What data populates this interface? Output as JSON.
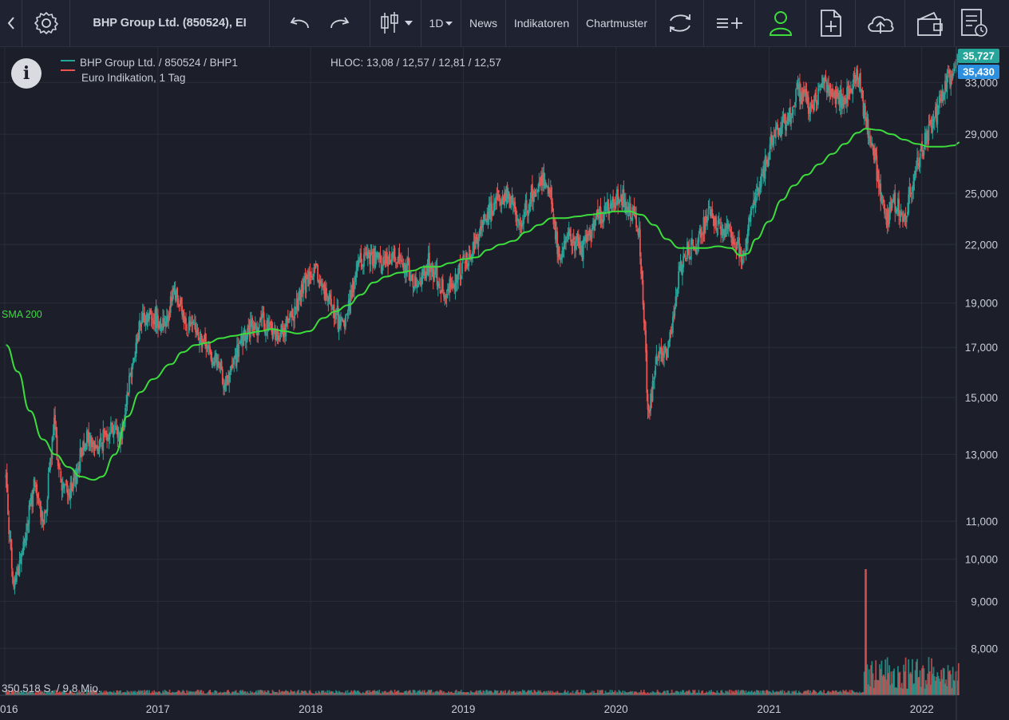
{
  "toolbar": {
    "instrument_title": "BHP Group Ltd. (850524), EI",
    "interval_label": "1D",
    "news_label": "News",
    "indicators_label": "Indikatoren",
    "patterns_label": "Chartmuster"
  },
  "legend": {
    "line1": "BHP Group Ltd.  / 850524 / BHP1",
    "line2": "Euro Indikation, 1 Tag",
    "hloc": "HLOC: 13,08 / 12,57 / 12,81 / 12,57",
    "series_up_color": "#26a69a",
    "series_down_color": "#ef5350"
  },
  "sma_label": "SMA 200",
  "sma_color": "#3ddc3d",
  "volume_label": "350.518 S.  / 9,8 Mio.",
  "price_tags": {
    "top": "35,727",
    "second": "35,430",
    "top_color": "#26a69a",
    "second_color": "#2d8fe0"
  },
  "chart_data": {
    "type": "candlestick",
    "y_axis": {
      "scale": "log",
      "ylim": [
        7200,
        36500
      ],
      "ticks": [
        8000,
        9000,
        10000,
        11000,
        13000,
        15000,
        17000,
        19000,
        22000,
        25000,
        29000,
        33000
      ],
      "tick_labels": [
        "8,000",
        "9,000",
        "10,000",
        "11,000",
        "13,000",
        "15,000",
        "17,000",
        "19,000",
        "22,000",
        "25,000",
        "29,000",
        "33,000"
      ]
    },
    "x_axis": {
      "xlim": [
        "2016-01-01",
        "2022-04-05"
      ],
      "tick_labels": [
        "016",
        "2017",
        "2018",
        "2019",
        "2020",
        "2021",
        "2022"
      ],
      "tick_dates": [
        "2016-01-01",
        "2017-01-01",
        "2018-01-01",
        "2019-01-01",
        "2020-01-01",
        "2021-01-01",
        "2022-01-01"
      ]
    },
    "price_path": [
      [
        "2016-01-04",
        12.3
      ],
      [
        "2016-01-20",
        9.3
      ],
      [
        "2016-02-15",
        10.3
      ],
      [
        "2016-03-10",
        12.0
      ],
      [
        "2016-04-05",
        11.0
      ],
      [
        "2016-04-28",
        14.0
      ],
      [
        "2016-05-15",
        12.0
      ],
      [
        "2016-06-10",
        11.8
      ],
      [
        "2016-07-10",
        13.6
      ],
      [
        "2016-08-10",
        13.2
      ],
      [
        "2016-09-10",
        14.0
      ],
      [
        "2016-10-05",
        13.6
      ],
      [
        "2016-10-25",
        15.8
      ],
      [
        "2016-11-20",
        18.0
      ],
      [
        "2016-12-15",
        18.5
      ],
      [
        "2017-01-15",
        18.0
      ],
      [
        "2017-02-10",
        19.5
      ],
      [
        "2017-03-10",
        18.0
      ],
      [
        "2017-04-10",
        17.5
      ],
      [
        "2017-05-15",
        16.5
      ],
      [
        "2017-06-15",
        15.5
      ],
      [
        "2017-07-15",
        17.0
      ],
      [
        "2017-08-10",
        17.8
      ],
      [
        "2017-09-10",
        18.1
      ],
      [
        "2017-10-10",
        17.5
      ],
      [
        "2017-11-10",
        18.0
      ],
      [
        "2017-12-20",
        20.0
      ],
      [
        "2018-01-15",
        20.5
      ],
      [
        "2018-02-15",
        19.0
      ],
      [
        "2018-03-20",
        17.8
      ],
      [
        "2018-04-25",
        21.0
      ],
      [
        "2018-05-20",
        21.5
      ],
      [
        "2018-06-20",
        21.0
      ],
      [
        "2018-07-20",
        21.5
      ],
      [
        "2018-08-20",
        20.8
      ],
      [
        "2018-09-15",
        19.5
      ],
      [
        "2018-10-10",
        21.0
      ],
      [
        "2018-11-20",
        19.5
      ],
      [
        "2018-12-20",
        20.5
      ],
      [
        "2019-01-20",
        21.5
      ],
      [
        "2019-02-20",
        23.5
      ],
      [
        "2019-03-20",
        24.5
      ],
      [
        "2019-04-15",
        25.0
      ],
      [
        "2019-05-15",
        23.2
      ],
      [
        "2019-06-15",
        25.0
      ],
      [
        "2019-07-10",
        26.0
      ],
      [
        "2019-07-30",
        25.0
      ],
      [
        "2019-08-15",
        21.5
      ],
      [
        "2019-09-15",
        22.5
      ],
      [
        "2019-10-10",
        21.5
      ],
      [
        "2019-11-15",
        23.5
      ],
      [
        "2019-12-15",
        24.0
      ],
      [
        "2020-01-10",
        25.0
      ],
      [
        "2020-02-05",
        23.8
      ],
      [
        "2020-02-25",
        23.0
      ],
      [
        "2020-03-10",
        17.5
      ],
      [
        "2020-03-18",
        14.2
      ],
      [
        "2020-04-05",
        16.5
      ],
      [
        "2020-05-05",
        17.0
      ],
      [
        "2020-05-25",
        19.5
      ],
      [
        "2020-06-10",
        21.5
      ],
      [
        "2020-07-10",
        22.0
      ],
      [
        "2020-08-10",
        23.8
      ],
      [
        "2020-09-10",
        23.0
      ],
      [
        "2020-10-10",
        22.5
      ],
      [
        "2020-10-30",
        21.2
      ],
      [
        "2020-11-20",
        24.0
      ],
      [
        "2020-12-15",
        26.0
      ],
      [
        "2021-01-10",
        29.0
      ],
      [
        "2021-02-15",
        30.0
      ],
      [
        "2021-03-10",
        32.5
      ],
      [
        "2021-04-10",
        31.0
      ],
      [
        "2021-05-10",
        33.0
      ],
      [
        "2021-06-10",
        31.5
      ],
      [
        "2021-07-10",
        32.0
      ],
      [
        "2021-07-30",
        34.0
      ],
      [
        "2021-08-20",
        30.0
      ],
      [
        "2021-09-10",
        27.5
      ],
      [
        "2021-09-25",
        24.5
      ],
      [
        "2021-10-10",
        23.5
      ],
      [
        "2021-10-30",
        24.5
      ],
      [
        "2021-11-20",
        23.5
      ],
      [
        "2021-12-15",
        26.5
      ],
      [
        "2022-01-10",
        28.5
      ],
      [
        "2022-02-05",
        30.5
      ],
      [
        "2022-02-25",
        32.5
      ],
      [
        "2022-03-10",
        33.5
      ],
      [
        "2022-03-25",
        35.0
      ],
      [
        "2022-04-01",
        35.4
      ]
    ],
    "sma200_path": [
      [
        "2016-01-04",
        17.1
      ],
      [
        "2016-02-01",
        16.0
      ],
      [
        "2016-03-01",
        14.5
      ],
      [
        "2016-04-01",
        13.5
      ],
      [
        "2016-05-01",
        13.0
      ],
      [
        "2016-06-01",
        12.6
      ],
      [
        "2016-07-01",
        12.3
      ],
      [
        "2016-08-01",
        12.2
      ],
      [
        "2016-08-20",
        12.3
      ],
      [
        "2016-09-20",
        13.0
      ],
      [
        "2016-10-20",
        14.3
      ],
      [
        "2016-11-20",
        15.2
      ],
      [
        "2016-12-20",
        15.7
      ],
      [
        "2017-02-01",
        16.3
      ],
      [
        "2017-03-01",
        16.8
      ],
      [
        "2017-04-01",
        17.1
      ],
      [
        "2017-05-01",
        17.2
      ],
      [
        "2017-06-01",
        17.4
      ],
      [
        "2017-07-01",
        17.5
      ],
      [
        "2017-08-01",
        17.6
      ],
      [
        "2017-09-01",
        17.7
      ],
      [
        "2017-10-01",
        17.8
      ],
      [
        "2017-11-01",
        17.7
      ],
      [
        "2017-12-01",
        17.6
      ],
      [
        "2017-12-28",
        17.7
      ],
      [
        "2018-02-01",
        18.3
      ],
      [
        "2018-03-01",
        18.6
      ],
      [
        "2018-04-01",
        18.9
      ],
      [
        "2018-05-01",
        19.4
      ],
      [
        "2018-06-01",
        20.0
      ],
      [
        "2018-07-01",
        20.3
      ],
      [
        "2018-08-01",
        20.5
      ],
      [
        "2018-09-01",
        20.6
      ],
      [
        "2018-10-01",
        20.8
      ],
      [
        "2018-11-01",
        20.8
      ],
      [
        "2018-12-01",
        21.0
      ],
      [
        "2019-01-01",
        21.2
      ],
      [
        "2019-02-01",
        21.3
      ],
      [
        "2019-03-01",
        21.7
      ],
      [
        "2019-04-01",
        22.0
      ],
      [
        "2019-05-01",
        22.2
      ],
      [
        "2019-06-01",
        22.7
      ],
      [
        "2019-07-01",
        23.1
      ],
      [
        "2019-08-01",
        23.5
      ],
      [
        "2019-09-01",
        23.5
      ],
      [
        "2019-10-01",
        23.6
      ],
      [
        "2019-11-01",
        23.7
      ],
      [
        "2019-12-01",
        23.8
      ],
      [
        "2020-01-01",
        23.9
      ],
      [
        "2020-02-01",
        23.9
      ],
      [
        "2020-03-01",
        23.7
      ],
      [
        "2020-04-01",
        23.1
      ],
      [
        "2020-05-01",
        22.3
      ],
      [
        "2020-06-01",
        21.8
      ],
      [
        "2020-07-01",
        21.8
      ],
      [
        "2020-08-01",
        21.8
      ],
      [
        "2020-09-01",
        21.9
      ],
      [
        "2020-10-01",
        21.8
      ],
      [
        "2020-10-25",
        21.4
      ],
      [
        "2020-11-10",
        21.5
      ],
      [
        "2020-12-01",
        22.3
      ],
      [
        "2021-01-01",
        23.3
      ],
      [
        "2021-02-01",
        24.6
      ],
      [
        "2021-03-01",
        25.5
      ],
      [
        "2021-04-01",
        26.2
      ],
      [
        "2021-05-01",
        26.9
      ],
      [
        "2021-06-01",
        27.6
      ],
      [
        "2021-07-01",
        28.3
      ],
      [
        "2021-08-01",
        29.1
      ],
      [
        "2021-08-20",
        29.4
      ],
      [
        "2021-09-20",
        29.3
      ],
      [
        "2021-10-20",
        29.0
      ],
      [
        "2021-11-20",
        28.6
      ],
      [
        "2021-12-20",
        28.3
      ],
      [
        "2022-01-20",
        28.1
      ],
      [
        "2022-02-20",
        28.1
      ],
      [
        "2022-03-20",
        28.2
      ],
      [
        "2022-04-01",
        28.4
      ]
    ]
  }
}
